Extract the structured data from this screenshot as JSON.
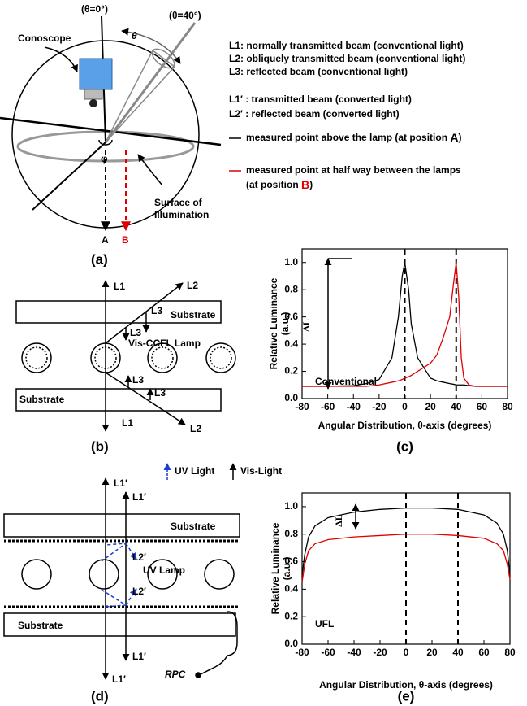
{
  "figure_a": {
    "theta0": "(θ=0°)",
    "theta40": "(θ=40°)",
    "theta": "θ",
    "conoscope": "Conoscope",
    "phi": "φ",
    "surface": [
      "Surface of",
      "Illumination"
    ],
    "pos_a": "A",
    "pos_b": "B",
    "label": "(a)",
    "legend": [
      "L1: normally transmitted beam (conventional light)",
      "L2: obliquely transmitted beam (conventional light)",
      "L3: reflected beam (conventional light)",
      "L1′ : transmitted beam (converted light)",
      "L2′ : reflected beam (converted light)"
    ],
    "measured_a": [
      "measured point above the lamp (at position ",
      "A",
      ")"
    ],
    "measured_b": [
      "measured point at half way between the lamps",
      "(at position ",
      "B",
      ")"
    ]
  },
  "figure_b": {
    "labels": [
      "L1",
      "L2",
      "L3",
      "Substrate",
      "L3",
      "Vis-CCFL Lamp",
      "L3",
      "Substrate",
      "L3",
      "L1",
      "L2"
    ],
    "label": "(b)"
  },
  "figure_d": {
    "labels": [
      "UV Light",
      "Vis-Light",
      "L1′",
      "L1′",
      "Substrate",
      "L2′",
      "UV Lamp",
      "L2′",
      "Substrate",
      "L1′",
      "RPC",
      "L1′"
    ],
    "label": "(d)"
  },
  "chart_data": [
    {
      "type": "line",
      "panel_label": "(c)",
      "ylabel": [
        "Relative Luminance",
        "(a.u.)"
      ],
      "xlabel": "Angular Distribution, θ-axis (degrees)",
      "annotations": [
        "ΔL",
        "Conventional"
      ],
      "x": [
        -80,
        -60,
        -40,
        -30,
        -20,
        -10,
        -5,
        -2,
        0,
        3,
        5,
        10,
        20,
        25,
        30,
        35,
        38,
        40,
        42,
        44,
        46,
        50,
        55,
        60,
        80
      ],
      "series": [
        {
          "color": "#000000",
          "values": [
            0.09,
            0.09,
            0.095,
            0.11,
            0.14,
            0.3,
            0.6,
            0.9,
            1.0,
            0.8,
            0.55,
            0.3,
            0.15,
            0.13,
            0.12,
            0.11,
            0.105,
            0.1,
            0.1,
            0.1,
            0.1,
            0.095,
            0.09,
            0.09,
            0.09
          ]
        },
        {
          "color": "#e00000",
          "values": [
            0.09,
            0.09,
            0.09,
            0.09,
            0.1,
            0.12,
            0.13,
            0.14,
            0.15,
            0.16,
            0.17,
            0.2,
            0.26,
            0.32,
            0.45,
            0.6,
            0.85,
            1.0,
            0.75,
            0.3,
            0.15,
            0.1,
            0.09,
            0.09,
            0.09
          ]
        }
      ],
      "vlines": [
        0,
        40
      ],
      "xlim": [
        -80,
        80
      ],
      "xticks": [
        -80,
        -60,
        -40,
        -20,
        0,
        20,
        40,
        60,
        80
      ],
      "ylim": [
        0,
        1.1
      ],
      "yticks": [
        {
          "value": 0,
          "label": "0.0"
        },
        0.2,
        0.4,
        0.6,
        0.8,
        {
          "value": 1,
          "label": "1.0"
        }
      ],
      "grid": false
    },
    {
      "type": "line",
      "panel_label": "(e)",
      "ylabel": [
        "Relative Luminance",
        "(a.u.)"
      ],
      "xlabel": "Angular Distribution, θ-axis (degrees)",
      "annotations": [
        "ΔL",
        "UFL"
      ],
      "x": [
        -80,
        -78,
        -75,
        -70,
        -60,
        -40,
        -20,
        0,
        20,
        40,
        60,
        70,
        75,
        78,
        80
      ],
      "series": [
        {
          "color": "#000000",
          "values": [
            0.5,
            0.65,
            0.78,
            0.86,
            0.92,
            0.96,
            0.98,
            0.99,
            0.99,
            0.98,
            0.94,
            0.88,
            0.8,
            0.68,
            0.5
          ]
        },
        {
          "color": "#e00000",
          "values": [
            0.45,
            0.58,
            0.68,
            0.73,
            0.76,
            0.78,
            0.79,
            0.8,
            0.8,
            0.79,
            0.77,
            0.73,
            0.68,
            0.58,
            0.47
          ]
        }
      ],
      "vlines": [
        0,
        40
      ],
      "xlim": [
        -80,
        80
      ],
      "xticks": [
        -80,
        -60,
        -40,
        -20,
        0,
        20,
        40,
        60,
        80
      ],
      "ylim": [
        0,
        1.1
      ],
      "yticks": [
        {
          "value": 0,
          "label": "0.0"
        },
        0.2,
        0.4,
        0.6,
        0.8,
        {
          "value": 1,
          "label": "1.0"
        }
      ],
      "grid": false
    }
  ]
}
